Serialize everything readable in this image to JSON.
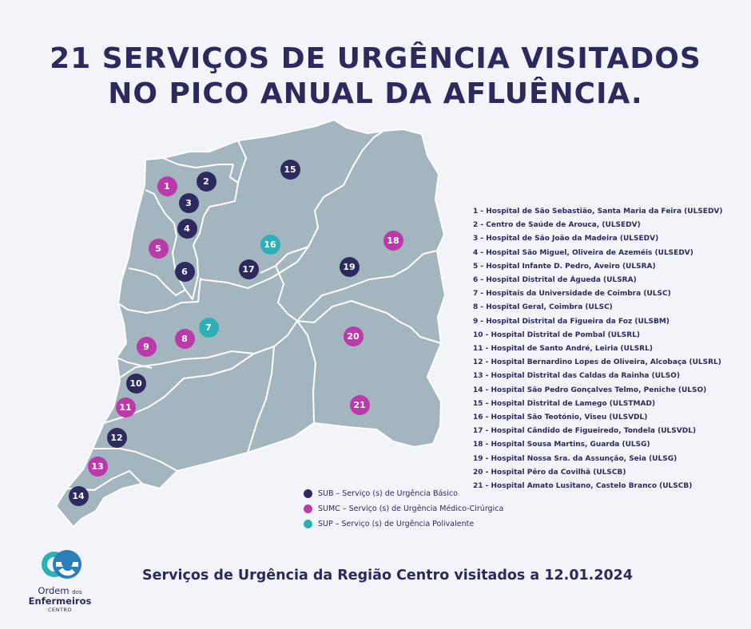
{
  "title": {
    "line1": "21 SERVIÇOS DE URGÊNCIA VISITADOS",
    "line2": "NO PICO ANUAL DA AFLUÊNCIA."
  },
  "colors": {
    "SUB": "#2d2a5e",
    "SUMC": "#b93aa8",
    "SUP": "#2db0b5",
    "map_fill": "#a3b6bf",
    "map_border": "#ffffff",
    "text": "#2a2a5c",
    "background": "#f3f4fa"
  },
  "markers": [
    {
      "id": "1",
      "type": "SUMC"
    },
    {
      "id": "2",
      "type": "SUB"
    },
    {
      "id": "3",
      "type": "SUB"
    },
    {
      "id": "4",
      "type": "SUB"
    },
    {
      "id": "5",
      "type": "SUMC"
    },
    {
      "id": "6",
      "type": "SUB"
    },
    {
      "id": "7",
      "type": "SUP"
    },
    {
      "id": "8",
      "type": "SUMC"
    },
    {
      "id": "9",
      "type": "SUMC"
    },
    {
      "id": "10",
      "type": "SUB"
    },
    {
      "id": "11",
      "type": "SUMC"
    },
    {
      "id": "12",
      "type": "SUB"
    },
    {
      "id": "13",
      "type": "SUMC"
    },
    {
      "id": "14",
      "type": "SUB"
    },
    {
      "id": "15",
      "type": "SUB"
    },
    {
      "id": "16",
      "type": "SUP"
    },
    {
      "id": "17",
      "type": "SUB"
    },
    {
      "id": "18",
      "type": "SUMC"
    },
    {
      "id": "19",
      "type": "SUB"
    },
    {
      "id": "20",
      "type": "SUMC"
    },
    {
      "id": "21",
      "type": "SUMC"
    }
  ],
  "hospitals": [
    "1 - Hospital de São Sebastião, Santa Maria da Feira (ULSEDV)",
    "2 - Centro de Saúde de Arouca, (ULSEDV)",
    "3 - Hospital de São João da Madeira (ULSEDV)",
    "4 - Hospital São Miguel, Oliveira de Azeméis (ULSEDV)",
    "5 - Hospital Infante D. Pedro, Aveiro (ULSRA)",
    "6 - Hospital Distrital de Águeda (ULSRA)",
    "7 - Hospitais da Universidade de Coimbra (ULSC)",
    "8 - Hospital Geral, Coimbra (ULSC)",
    "9 - Hospital Distrital da Figueira da Foz (ULSBM)",
    "10 - Hospital Distrital de Pombal (ULSRL)",
    "11 - Hospital de Santo André, Leiria (ULSRL)",
    "12 - Hospital Bernardino Lopes de Oliveira, Alcobaça (ULSRL)",
    "13 - Hospital Distrital das Caldas da Rainha (ULSO)",
    "14 - Hospital São Pedro Gonçalves Telmo, Peniche (ULSO)",
    "15 - Hospital Distrital de Lamego (ULSTMAD)",
    "16 - Hospital São Teotónio, Viseu (ULSVDL)",
    "17 - Hospital Cândido de Figueiredo, Tondela (ULSVDL)",
    "18 - Hospital Sousa Martins, Guarda (ULSG)",
    "19 - Hospital Nossa Sra. da Assunção, Seia (ULSG)",
    "20 - Hospital Pêro da Covilhã (ULSCB)",
    "21 - Hospital Amato Lusitano, Castelo Branco (ULSCB)"
  ],
  "legend": [
    {
      "type": "SUB",
      "label": "SUB – Serviço (s) de Urgência Básico"
    },
    {
      "type": "SUMC",
      "label": "SUMC – Serviço (s) de Urgência Médico-Cirúrgica"
    },
    {
      "type": "SUP",
      "label": "SUP – Serviço (s) de Urgência Polivalente"
    }
  ],
  "footer_caption": "Serviços de Urgência da Região Centro visitados a 12.01.2024",
  "logo": {
    "icon": "oe-monogram-icon",
    "line1_main": "Ordem",
    "line1_small": "dos",
    "line2": "Enfermeiros",
    "line3": "CENTRO"
  }
}
